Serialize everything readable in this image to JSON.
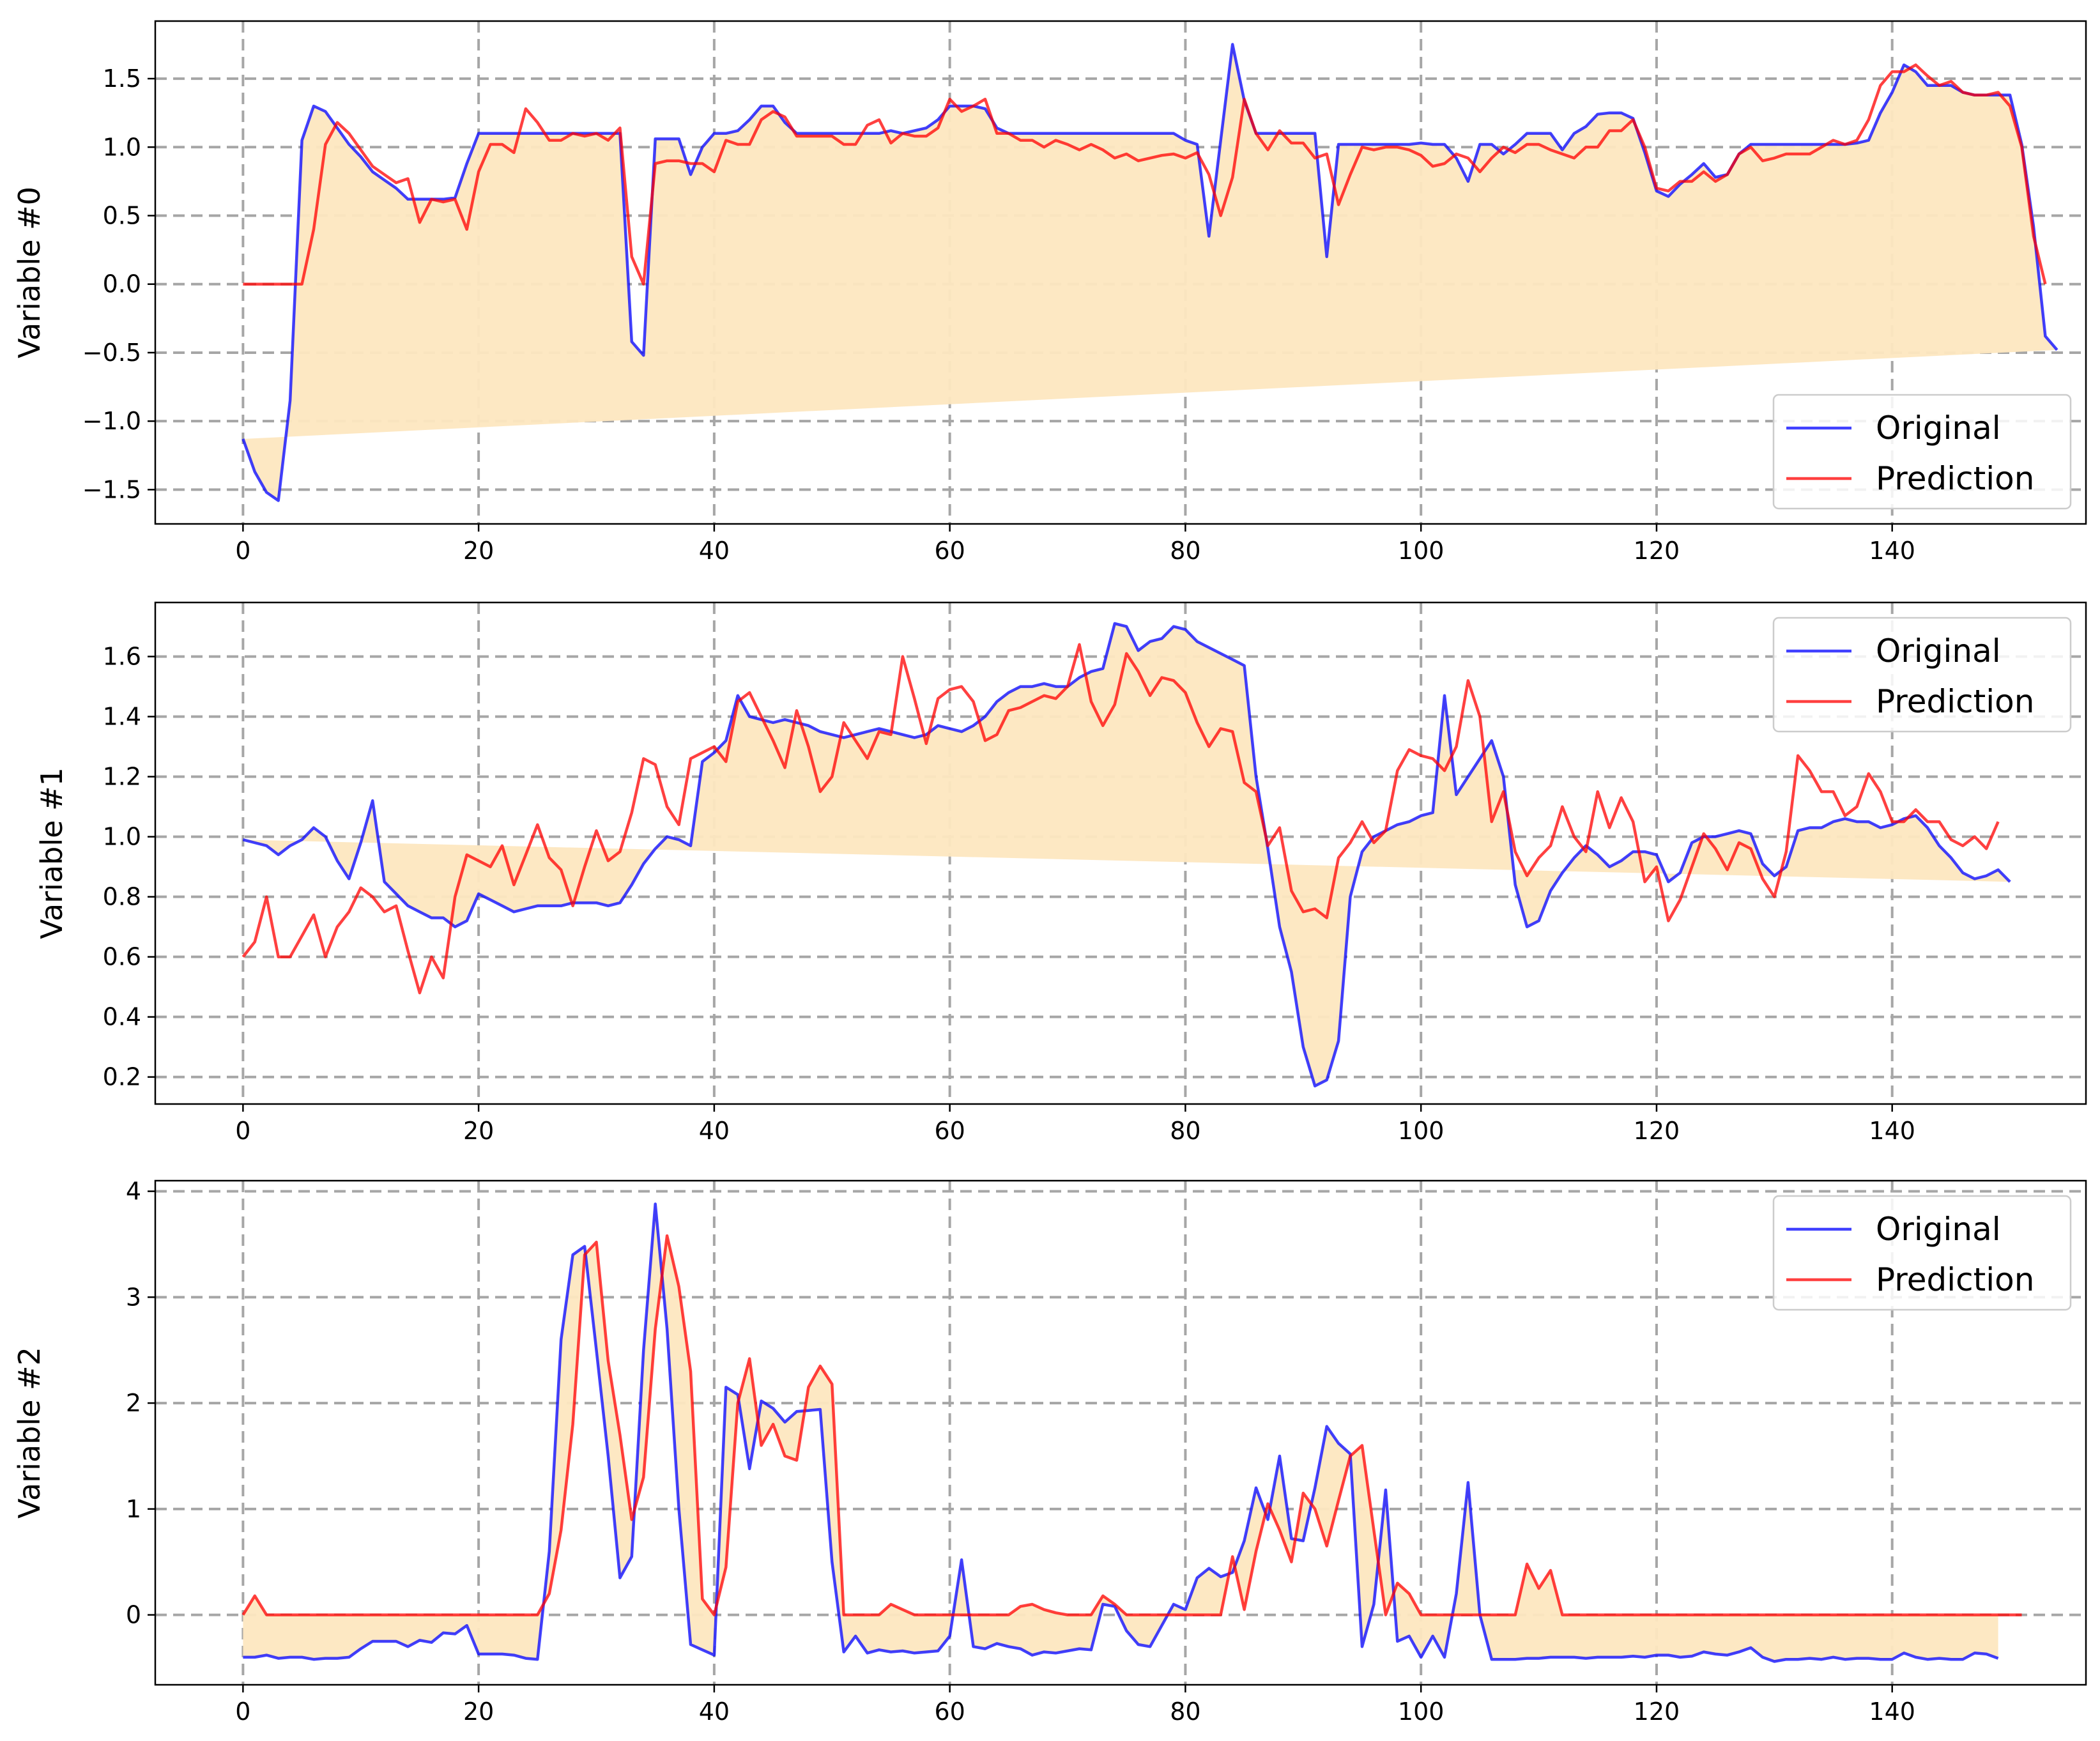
{
  "chart_data": [
    {
      "type": "line",
      "ylabel": "Variable #0",
      "xlim": [
        -7.45,
        156.45
      ],
      "ylim": [
        -1.75,
        1.92
      ],
      "xticks": [
        0,
        20,
        40,
        60,
        80,
        100,
        120,
        140
      ],
      "yticks": [
        -1.5,
        -1.0,
        -0.5,
        0.0,
        0.5,
        1.0,
        1.5
      ],
      "ytick_labels": [
        "−1.5",
        "−1.0",
        "−0.5",
        "0.0",
        "0.5",
        "1.0",
        "1.5"
      ],
      "grid": true,
      "legend": "bottom-right",
      "fill_between": true,
      "series": [
        {
          "name": "Original",
          "color": "#0000ff",
          "values": [
            -1.13,
            -1.37,
            -1.52,
            -1.58,
            -0.85,
            1.05,
            1.3,
            1.26,
            1.14,
            1.02,
            0.93,
            0.82,
            0.76,
            0.7,
            0.62,
            0.62,
            0.62,
            0.62,
            0.63,
            0.88,
            1.1,
            1.1,
            1.1,
            1.1,
            1.1,
            1.1,
            1.1,
            1.1,
            1.1,
            1.1,
            1.1,
            1.1,
            1.1,
            -0.42,
            -0.52,
            1.06,
            1.06,
            1.06,
            0.8,
            1.0,
            1.1,
            1.1,
            1.12,
            1.2,
            1.3,
            1.3,
            1.18,
            1.1,
            1.1,
            1.1,
            1.1,
            1.1,
            1.1,
            1.1,
            1.1,
            1.12,
            1.1,
            1.12,
            1.14,
            1.2,
            1.3,
            1.3,
            1.3,
            1.28,
            1.14,
            1.1,
            1.1,
            1.1,
            1.1,
            1.1,
            1.1,
            1.1,
            1.1,
            1.1,
            1.1,
            1.1,
            1.1,
            1.1,
            1.1,
            1.1,
            1.05,
            1.02,
            0.35,
            1.05,
            1.75,
            1.34,
            1.1,
            1.1,
            1.1,
            1.1,
            1.1,
            1.1,
            0.2,
            1.02,
            1.02,
            1.02,
            1.02,
            1.02,
            1.02,
            1.02,
            1.03,
            1.02,
            1.02,
            0.92,
            0.75,
            1.02,
            1.02,
            0.95,
            1.02,
            1.1,
            1.1,
            1.1,
            0.98,
            1.1,
            1.15,
            1.24,
            1.25,
            1.25,
            1.21,
            0.96,
            0.68,
            0.64,
            0.73,
            0.8,
            0.88,
            0.78,
            0.8,
            0.95,
            1.02,
            1.02,
            1.02,
            1.02,
            1.02,
            1.02,
            1.02,
            1.02,
            1.02,
            1.03,
            1.05,
            1.25,
            1.4,
            1.6,
            1.55,
            1.45,
            1.45,
            1.45,
            1.4,
            1.38,
            1.38,
            1.38,
            1.38,
            1.02,
            0.42,
            -0.38,
            -0.48
          ]
        },
        {
          "name": "Prediction",
          "color": "#ff0000",
          "values": [
            0.0,
            0.0,
            0.0,
            0.0,
            0.0,
            0.0,
            0.4,
            1.02,
            1.18,
            1.1,
            0.98,
            0.86,
            0.8,
            0.74,
            0.77,
            0.45,
            0.62,
            0.6,
            0.62,
            0.4,
            0.82,
            1.02,
            1.02,
            0.96,
            1.28,
            1.18,
            1.05,
            1.05,
            1.1,
            1.08,
            1.1,
            1.05,
            1.14,
            0.2,
            0.0,
            0.88,
            0.9,
            0.9,
            0.88,
            0.88,
            0.82,
            1.05,
            1.02,
            1.02,
            1.2,
            1.26,
            1.22,
            1.08,
            1.08,
            1.08,
            1.08,
            1.02,
            1.02,
            1.16,
            1.2,
            1.03,
            1.1,
            1.08,
            1.08,
            1.14,
            1.35,
            1.26,
            1.3,
            1.35,
            1.1,
            1.1,
            1.05,
            1.05,
            1.0,
            1.05,
            1.02,
            0.98,
            1.02,
            0.98,
            0.92,
            0.95,
            0.9,
            0.92,
            0.94,
            0.95,
            0.92,
            0.96,
            0.8,
            0.5,
            0.78,
            1.35,
            1.1,
            0.98,
            1.12,
            1.03,
            1.03,
            0.92,
            0.95,
            0.58,
            0.8,
            1.0,
            0.98,
            1.0,
            1.0,
            0.98,
            0.94,
            0.86,
            0.88,
            0.95,
            0.92,
            0.82,
            0.92,
            1.0,
            0.96,
            1.02,
            1.02,
            0.98,
            0.95,
            0.92,
            1.0,
            1.0,
            1.12,
            1.12,
            1.2,
            1.0,
            0.7,
            0.68,
            0.75,
            0.75,
            0.82,
            0.75,
            0.8,
            0.95,
            1.0,
            0.9,
            0.92,
            0.95,
            0.95,
            0.95,
            1.0,
            1.05,
            1.02,
            1.05,
            1.2,
            1.45,
            1.55,
            1.55,
            1.6,
            1.52,
            1.45,
            1.48,
            1.4,
            1.38,
            1.38,
            1.4,
            1.3,
            1.0,
            0.35,
            0.0
          ]
        }
      ]
    },
    {
      "type": "line",
      "ylabel": "Variable #1",
      "xlim": [
        -7.45,
        156.45
      ],
      "ylim": [
        0.11,
        1.78
      ],
      "xticks": [
        0,
        20,
        40,
        60,
        80,
        100,
        120,
        140
      ],
      "yticks": [
        0.2,
        0.4,
        0.6,
        0.8,
        1.0,
        1.2,
        1.4,
        1.6
      ],
      "ytick_labels": [
        "0.2",
        "0.4",
        "0.6",
        "0.8",
        "1.0",
        "1.2",
        "1.4",
        "1.6"
      ],
      "grid": true,
      "legend": "top-right",
      "fill_between": true,
      "series": [
        {
          "name": "Original",
          "color": "#0000ff",
          "values": [
            0.99,
            0.98,
            0.97,
            0.94,
            0.97,
            0.99,
            1.03,
            1.0,
            0.92,
            0.86,
            0.98,
            1.12,
            0.85,
            0.81,
            0.77,
            0.75,
            0.73,
            0.73,
            0.7,
            0.72,
            0.81,
            0.79,
            0.77,
            0.75,
            0.76,
            0.77,
            0.77,
            0.77,
            0.78,
            0.78,
            0.78,
            0.77,
            0.78,
            0.84,
            0.91,
            0.96,
            1.0,
            0.99,
            0.97,
            1.25,
            1.28,
            1.32,
            1.47,
            1.4,
            1.39,
            1.38,
            1.39,
            1.38,
            1.37,
            1.35,
            1.34,
            1.33,
            1.34,
            1.35,
            1.36,
            1.35,
            1.34,
            1.33,
            1.34,
            1.37,
            1.36,
            1.35,
            1.37,
            1.4,
            1.45,
            1.48,
            1.5,
            1.5,
            1.51,
            1.5,
            1.5,
            1.53,
            1.55,
            1.56,
            1.71,
            1.7,
            1.62,
            1.65,
            1.66,
            1.7,
            1.69,
            1.65,
            1.63,
            1.61,
            1.59,
            1.57,
            1.2,
            0.96,
            0.7,
            0.55,
            0.3,
            0.17,
            0.19,
            0.32,
            0.8,
            0.95,
            1.0,
            1.02,
            1.04,
            1.05,
            1.07,
            1.08,
            1.47,
            1.14,
            1.2,
            1.26,
            1.32,
            1.2,
            0.84,
            0.7,
            0.72,
            0.82,
            0.88,
            0.93,
            0.97,
            0.94,
            0.9,
            0.92,
            0.95,
            0.95,
            0.94,
            0.85,
            0.88,
            0.98,
            1.0,
            1.0,
            1.01,
            1.02,
            1.01,
            0.91,
            0.87,
            0.9,
            1.02,
            1.03,
            1.03,
            1.05,
            1.06,
            1.05,
            1.05,
            1.03,
            1.04,
            1.06,
            1.07,
            1.03,
            0.97,
            0.93,
            0.88,
            0.86,
            0.87,
            0.89,
            0.85
          ]
        },
        {
          "name": "Prediction",
          "color": "#ff0000",
          "values": [
            0.6,
            0.65,
            0.8,
            0.6,
            0.6,
            0.67,
            0.74,
            0.6,
            0.7,
            0.75,
            0.83,
            0.8,
            0.75,
            0.77,
            0.62,
            0.48,
            0.6,
            0.53,
            0.8,
            0.94,
            0.92,
            0.9,
            0.97,
            0.84,
            0.94,
            1.04,
            0.93,
            0.89,
            0.77,
            0.9,
            1.02,
            0.92,
            0.95,
            1.08,
            1.26,
            1.24,
            1.1,
            1.04,
            1.26,
            1.28,
            1.3,
            1.25,
            1.45,
            1.48,
            1.4,
            1.32,
            1.23,
            1.42,
            1.3,
            1.15,
            1.2,
            1.38,
            1.32,
            1.26,
            1.35,
            1.34,
            1.6,
            1.46,
            1.31,
            1.46,
            1.49,
            1.5,
            1.45,
            1.32,
            1.34,
            1.42,
            1.43,
            1.45,
            1.47,
            1.46,
            1.5,
            1.64,
            1.45,
            1.37,
            1.44,
            1.61,
            1.55,
            1.47,
            1.53,
            1.52,
            1.48,
            1.38,
            1.3,
            1.36,
            1.35,
            1.18,
            1.15,
            0.97,
            1.03,
            0.82,
            0.75,
            0.76,
            0.73,
            0.93,
            0.98,
            1.05,
            0.98,
            1.02,
            1.22,
            1.29,
            1.27,
            1.26,
            1.22,
            1.3,
            1.52,
            1.4,
            1.05,
            1.15,
            0.95,
            0.87,
            0.93,
            0.97,
            1.1,
            1.0,
            0.95,
            1.15,
            1.03,
            1.13,
            1.05,
            0.85,
            0.9,
            0.72,
            0.79,
            0.9,
            1.01,
            0.96,
            0.89,
            0.98,
            0.96,
            0.86,
            0.8,
            0.95,
            1.27,
            1.22,
            1.15,
            1.15,
            1.07,
            1.1,
            1.21,
            1.15,
            1.05,
            1.05,
            1.09,
            1.05,
            1.05,
            0.99,
            0.97,
            1.0,
            0.96,
            1.05
          ]
        }
      ]
    },
    {
      "type": "line",
      "ylabel": "Variable #2",
      "xlim": [
        -7.45,
        156.45
      ],
      "ylim": [
        -0.66,
        4.1
      ],
      "xticks": [
        0,
        20,
        40,
        60,
        80,
        100,
        120,
        140
      ],
      "yticks": [
        0,
        1,
        2,
        3,
        4
      ],
      "ytick_labels": [
        "0",
        "1",
        "2",
        "3",
        "4"
      ],
      "grid": true,
      "legend": "top-right",
      "fill_between": true,
      "series": [
        {
          "name": "Original",
          "color": "#0000ff",
          "values": [
            -0.4,
            -0.4,
            -0.38,
            -0.41,
            -0.4,
            -0.4,
            -0.42,
            -0.41,
            -0.41,
            -0.4,
            -0.32,
            -0.25,
            -0.25,
            -0.25,
            -0.3,
            -0.24,
            -0.26,
            -0.17,
            -0.18,
            -0.1,
            -0.37,
            -0.37,
            -0.37,
            -0.38,
            -0.41,
            -0.42,
            0.6,
            2.6,
            3.4,
            3.48,
            2.5,
            1.5,
            0.35,
            0.55,
            2.5,
            3.88,
            2.7,
            1.0,
            -0.28,
            -0.33,
            -0.38,
            2.15,
            2.08,
            1.38,
            2.02,
            1.95,
            1.82,
            1.92,
            1.93,
            1.94,
            0.5,
            -0.35,
            -0.2,
            -0.36,
            -0.33,
            -0.35,
            -0.34,
            -0.36,
            -0.35,
            -0.34,
            -0.2,
            0.52,
            -0.3,
            -0.32,
            -0.27,
            -0.3,
            -0.32,
            -0.38,
            -0.35,
            -0.36,
            -0.34,
            -0.32,
            -0.33,
            0.1,
            0.08,
            -0.15,
            -0.28,
            -0.3,
            -0.1,
            0.1,
            0.05,
            0.35,
            0.44,
            0.36,
            0.4,
            0.7,
            1.2,
            0.9,
            1.5,
            0.72,
            0.7,
            1.2,
            1.78,
            1.62,
            1.52,
            -0.3,
            0.1,
            1.18,
            -0.25,
            -0.2,
            -0.4,
            -0.2,
            -0.4,
            0.2,
            1.25,
            0.0,
            -0.42,
            -0.42,
            -0.42,
            -0.41,
            -0.41,
            -0.4,
            -0.4,
            -0.4,
            -0.41,
            -0.4,
            -0.4,
            -0.4,
            -0.39,
            -0.4,
            -0.38,
            -0.38,
            -0.4,
            -0.39,
            -0.35,
            -0.37,
            -0.38,
            -0.35,
            -0.31,
            -0.4,
            -0.44,
            -0.42,
            -0.42,
            -0.41,
            -0.42,
            -0.4,
            -0.42,
            -0.41,
            -0.41,
            -0.42,
            -0.42,
            -0.36,
            -0.4,
            -0.42,
            -0.41,
            -0.42,
            -0.42,
            -0.36,
            -0.37,
            -0.41
          ]
        },
        {
          "name": "Prediction",
          "color": "#ff0000",
          "values": [
            0.0,
            0.18,
            0.0,
            0.0,
            0.0,
            0.0,
            0.0,
            0.0,
            0.0,
            0.0,
            0.0,
            0.0,
            0.0,
            0.0,
            0.0,
            0.0,
            0.0,
            0.0,
            0.0,
            0.0,
            0.0,
            0.0,
            0.0,
            0.0,
            0.0,
            0.0,
            0.2,
            0.8,
            1.8,
            3.4,
            3.52,
            2.4,
            1.7,
            0.9,
            1.3,
            2.7,
            3.58,
            3.1,
            2.3,
            0.15,
            0.0,
            0.45,
            2.0,
            2.42,
            1.6,
            1.8,
            1.5,
            1.46,
            2.15,
            2.35,
            2.18,
            0.0,
            0.0,
            0.0,
            0.0,
            0.1,
            0.05,
            0.0,
            0.0,
            0.0,
            0.0,
            0.0,
            0.0,
            0.0,
            0.0,
            0.0,
            0.08,
            0.1,
            0.05,
            0.02,
            0.0,
            0.0,
            0.0,
            0.18,
            0.1,
            0.0,
            0.0,
            0.0,
            0.0,
            0.0,
            0.0,
            0.0,
            0.0,
            0.0,
            0.55,
            0.05,
            0.6,
            1.05,
            0.8,
            0.5,
            1.15,
            1.0,
            0.65,
            1.08,
            1.5,
            1.6,
            0.8,
            0.0,
            0.3,
            0.2,
            0.0,
            0.0,
            0.0,
            0.0,
            0.0,
            0.0,
            0.0,
            0.0,
            0.0,
            0.48,
            0.25,
            0.42,
            0.0,
            0.0,
            0.0,
            0.0,
            0.0,
            0.0,
            0.0,
            0.0,
            0.0,
            0.0,
            0.0,
            0.0,
            0.0,
            0.0,
            0.0,
            0.0,
            0.0,
            0.0,
            0.0,
            0.0,
            0.0,
            0.0,
            0.0,
            0.0,
            0.0,
            0.0,
            0.0,
            0.0,
            0.0,
            0.0,
            0.0,
            0.0,
            0.0,
            0.0,
            0.0,
            0.0,
            0.0,
            0.0,
            0.0,
            0.0
          ]
        }
      ]
    }
  ]
}
